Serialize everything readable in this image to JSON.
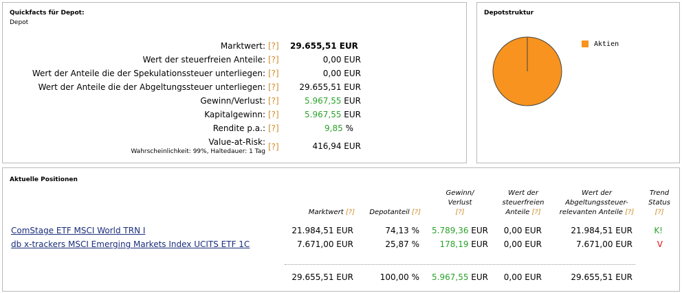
{
  "quickfacts": {
    "title": "Quickfacts für Depot:",
    "subtitle": "Depot",
    "help": "[?]",
    "rows": [
      {
        "label": "Marktwert:",
        "value": "29.655,51 EUR"
      },
      {
        "label": "Wert der steuerfreien Anteile:",
        "value": "0,00 EUR"
      },
      {
        "label": "Wert der Anteile die der Spekulationssteuer unterliegen:",
        "value": "0,00 EUR"
      },
      {
        "label": "Wert der Anteile die der Abgeltungssteuer unterliegen:",
        "value": "29.655,51 EUR"
      },
      {
        "label": "Gewinn/Verlust:",
        "value": "5.967,55",
        "unit": "EUR"
      },
      {
        "label": "Kapitalgewinn:",
        "value": "5.967,55",
        "unit": "EUR"
      },
      {
        "label": "Rendite p.a.:",
        "value": "9,85",
        "unit": "%"
      },
      {
        "label": "Value-at-Risk:",
        "note": "Wahrscheinlichkeit: 99%, Haltedauer: 1 Tag",
        "value": "416,94 EUR"
      }
    ]
  },
  "depotstruktur": {
    "title": "Depotstruktur",
    "legend": [
      {
        "label": "Aktien",
        "color": "#f7931e",
        "share": 100
      }
    ]
  },
  "positions": {
    "title": "Aktuelle Positionen",
    "help": "[?]",
    "headers": {
      "marktwert": "Marktwert",
      "depotanteil": "Depotanteil",
      "gewinn": "Gewinn/ Verlust",
      "steuerfrei": "Wert der steuerfreien Anteile",
      "abgeltung": "Wert der Abgeltungssteuer-relevanten Anteile",
      "trend": "Trend Status"
    },
    "rows": [
      {
        "name": "ComStage ETF MSCI World TRN I",
        "marktwert": "21.984,51 EUR",
        "depotanteil": "74,13 %",
        "gewinn": "5.789,36",
        "gewinn_unit": "EUR",
        "steuerfrei": "0,00 EUR",
        "abgeltung": "21.984,51 EUR",
        "trend": "K!"
      },
      {
        "name": "db x-trackers MSCI Emerging Markets Index UCITS ETF 1C",
        "marktwert": "7.671,00 EUR",
        "depotanteil": "25,87 %",
        "gewinn": "178,19",
        "gewinn_unit": "EUR",
        "steuerfrei": "0,00 EUR",
        "abgeltung": "7.671,00 EUR",
        "trend": "V"
      }
    ],
    "total": {
      "marktwert": "29.655,51 EUR",
      "depotanteil": "100,00 %",
      "gewinn": "5.967,55",
      "gewinn_unit": "EUR",
      "steuerfrei": "0,00 EUR",
      "abgeltung": "29.655,51 EUR"
    }
  }
}
